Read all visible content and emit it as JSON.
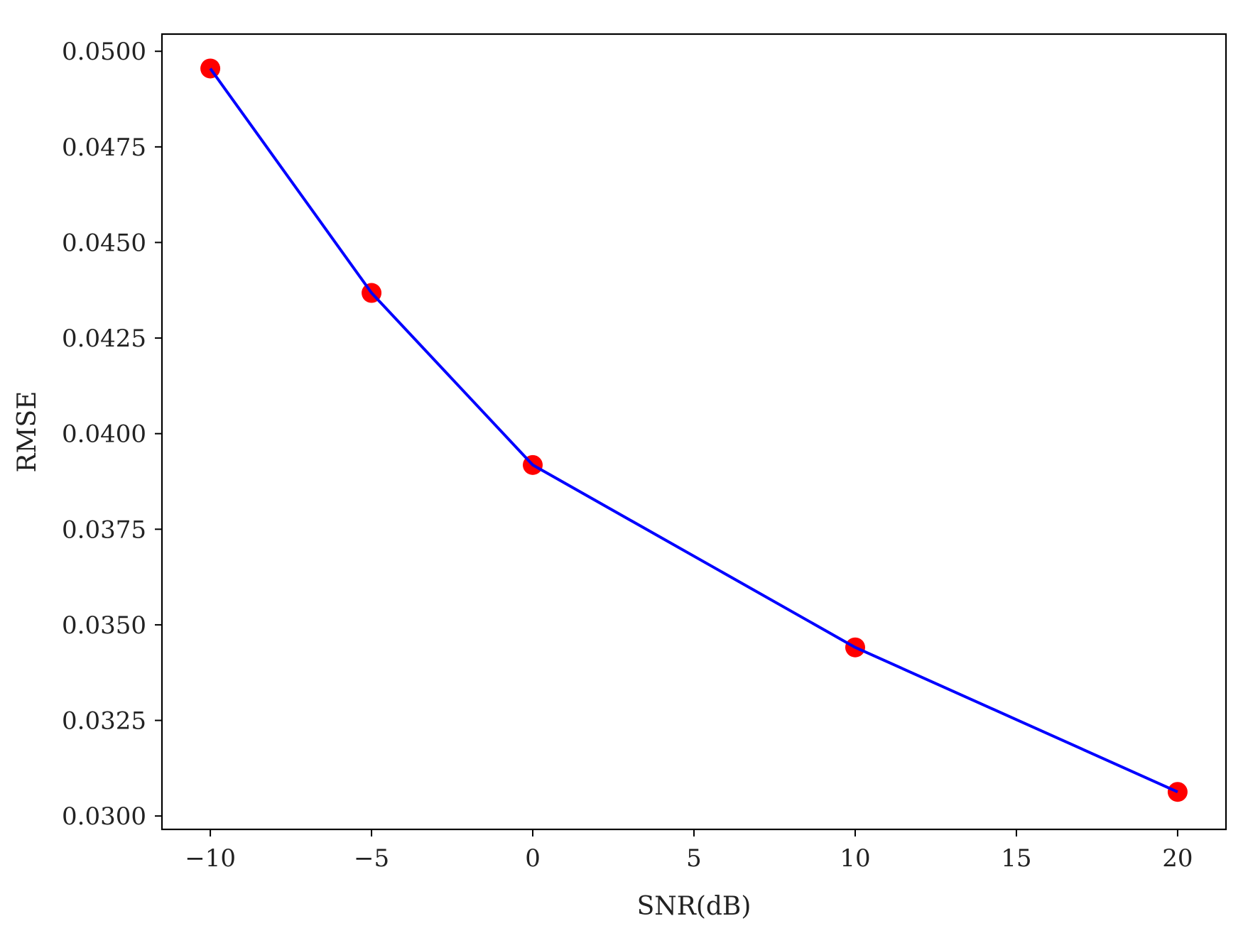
{
  "chart_data": {
    "type": "line",
    "title": "",
    "xlabel": "SNR(dB)",
    "ylabel": "RMSE",
    "xlim": [
      -11.5,
      21.5
    ],
    "ylim": [
      0.02965,
      0.05045
    ],
    "xticks": [
      -10,
      -5,
      0,
      5,
      10,
      15,
      20
    ],
    "xtick_labels": [
      "−10",
      "−5",
      "0",
      "5",
      "10",
      "15",
      "20"
    ],
    "yticks": [
      0.03,
      0.0325,
      0.035,
      0.0375,
      0.04,
      0.0425,
      0.045,
      0.0475,
      0.05
    ],
    "ytick_labels": [
      "0.0300",
      "0.0325",
      "0.0350",
      "0.0375",
      "0.0400",
      "0.0425",
      "0.0450",
      "0.0475",
      "0.0500"
    ],
    "grid": false,
    "legend": "none",
    "series": [
      {
        "x": [
          -10,
          -5,
          0,
          10,
          20
        ],
        "y": [
          0.04955,
          0.04368,
          0.03918,
          0.03441,
          0.03063
        ],
        "line_color": "#0000ff",
        "marker_color": "#ff0000",
        "marker": "circle"
      }
    ]
  }
}
